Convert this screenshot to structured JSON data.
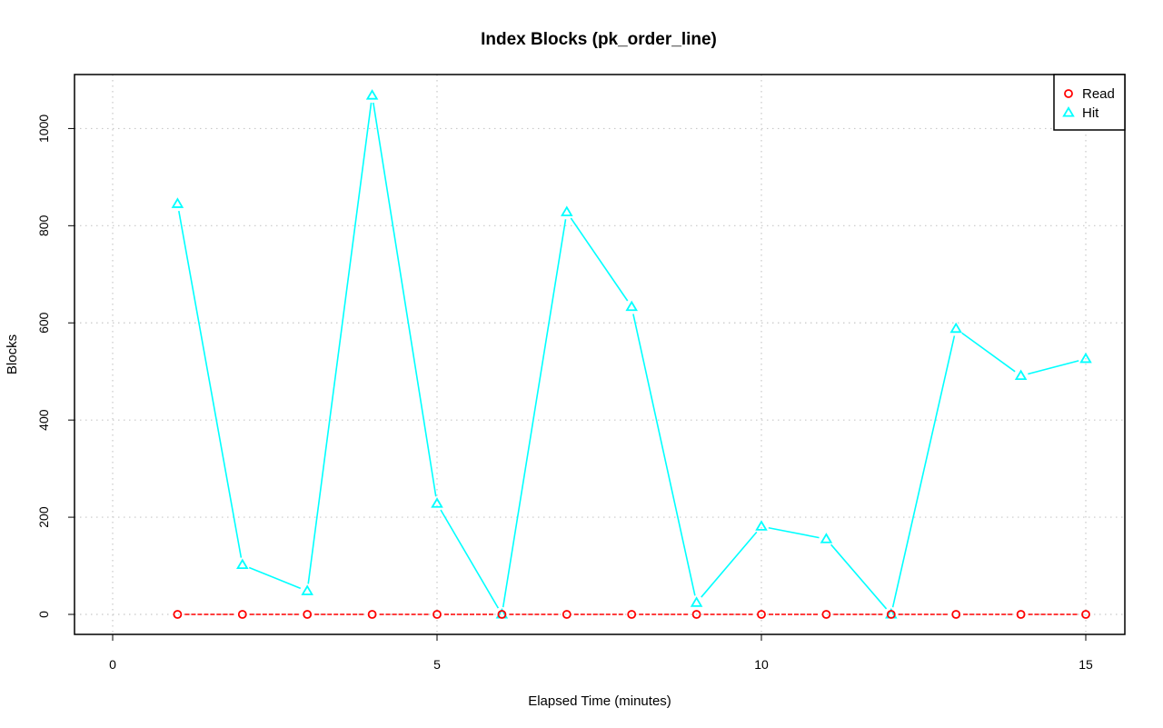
{
  "chart_data": {
    "type": "line",
    "title": "Index Blocks (pk_order_line)",
    "xlabel": "Elapsed Time (minutes)",
    "ylabel": "Blocks",
    "xlim": [
      0,
      15
    ],
    "ylim": [
      0,
      1070
    ],
    "x_ticks": [
      0,
      5,
      10,
      15
    ],
    "y_ticks": [
      0,
      200,
      400,
      600,
      800,
      1000
    ],
    "grid": true,
    "legend_position": "top-right",
    "x": [
      1,
      2,
      3,
      4,
      5,
      6,
      7,
      8,
      9,
      10,
      11,
      12,
      13,
      14,
      15
    ],
    "series": [
      {
        "name": "Read",
        "color": "#ff0000",
        "marker": "circle",
        "line_style": "dashed",
        "values": [
          0,
          0,
          0,
          0,
          0,
          0,
          0,
          0,
          0,
          0,
          0,
          0,
          0,
          0,
          0
        ]
      },
      {
        "name": "Hit",
        "color": "#00ffff",
        "marker": "triangle",
        "line_style": "solid",
        "values": [
          845,
          102,
          48,
          1068,
          228,
          0,
          828,
          633,
          24,
          181,
          155,
          0,
          588,
          491,
          526
        ]
      }
    ]
  }
}
